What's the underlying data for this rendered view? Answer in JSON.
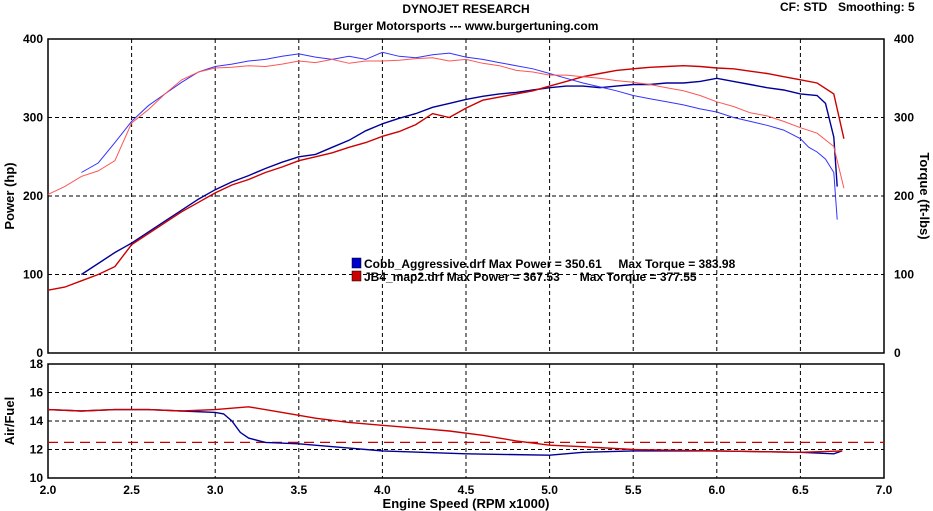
{
  "header": {
    "title": "DYNOJET RESEARCH",
    "subtitle": "Burger Motorsports --- www.burgertuning.com",
    "cf": "CF: STD",
    "smoothing": "Smoothing: 5"
  },
  "chart_data": [
    {
      "type": "line",
      "ylabel": "Power (hp)",
      "y2label": "Torque (ft-lbs)",
      "xlim": [
        2.0,
        7.0
      ],
      "ylim": [
        0,
        400
      ],
      "y2lim": [
        0,
        400
      ],
      "xticks": [
        "2.0",
        "2.5",
        "3.0",
        "3.5",
        "4.0",
        "4.5",
        "5.0",
        "5.5",
        "6.0",
        "6.5",
        "7.0"
      ],
      "yticks": [
        "0",
        "100",
        "200",
        "300",
        "400"
      ],
      "y2ticks": [
        "0",
        "100",
        "200",
        "300",
        "400"
      ],
      "grid": true,
      "legend": [
        {
          "text": "Cobb_Aggressive.drf Max Power = 350.61     Max Torque = 383.98",
          "color": "#0000cc"
        },
        {
          "text": "JB4_map2.drf Max Power = 367.53      Max Torque = 377.55",
          "color": "#cc0000"
        }
      ],
      "series": [
        {
          "name": "Cobb_Aggressive.drf",
          "quantity": "Power",
          "color": "#000099",
          "x": [
            2.2,
            2.3,
            2.4,
            2.5,
            2.6,
            2.7,
            2.8,
            2.9,
            3.0,
            3.1,
            3.2,
            3.3,
            3.4,
            3.5,
            3.6,
            3.7,
            3.8,
            3.9,
            4.0,
            4.1,
            4.2,
            4.3,
            4.4,
            4.5,
            4.6,
            4.7,
            4.8,
            4.9,
            5.0,
            5.1,
            5.2,
            5.3,
            5.4,
            5.5,
            5.6,
            5.7,
            5.8,
            5.9,
            6.0,
            6.1,
            6.2,
            6.3,
            6.4,
            6.5,
            6.6,
            6.65,
            6.7,
            6.72
          ],
          "y": [
            100,
            114,
            128,
            140,
            154,
            168,
            182,
            196,
            208,
            218,
            226,
            235,
            243,
            250,
            253,
            262,
            271,
            283,
            292,
            299,
            305,
            313,
            318,
            323,
            327,
            330,
            332,
            335,
            338,
            340,
            340,
            338,
            340,
            342,
            342,
            344,
            344,
            346,
            350,
            346,
            342,
            338,
            335,
            330,
            328,
            318,
            275,
            212
          ]
        },
        {
          "name": "JB4_map2.drf",
          "quantity": "Power",
          "color": "#cc0000",
          "x": [
            2.0,
            2.1,
            2.2,
            2.3,
            2.4,
            2.5,
            2.6,
            2.7,
            2.8,
            2.9,
            3.0,
            3.1,
            3.2,
            3.3,
            3.4,
            3.5,
            3.6,
            3.7,
            3.8,
            3.9,
            4.0,
            4.1,
            4.2,
            4.3,
            4.4,
            4.5,
            4.6,
            4.7,
            4.8,
            4.9,
            5.0,
            5.1,
            5.2,
            5.3,
            5.4,
            5.5,
            5.6,
            5.7,
            5.8,
            5.9,
            6.0,
            6.1,
            6.2,
            6.3,
            6.4,
            6.5,
            6.6,
            6.7,
            6.76
          ],
          "y": [
            80,
            84,
            92,
            100,
            110,
            138,
            152,
            166,
            180,
            192,
            204,
            214,
            221,
            230,
            237,
            245,
            250,
            255,
            262,
            268,
            276,
            282,
            291,
            305,
            300,
            312,
            322,
            326,
            330,
            334,
            340,
            346,
            352,
            356,
            360,
            362,
            364,
            365,
            366,
            365,
            363,
            362,
            359,
            356,
            352,
            348,
            344,
            330,
            273
          ]
        },
        {
          "name": "Cobb_Aggressive.drf",
          "quantity": "Torque",
          "color": "#3333ff",
          "x": [
            2.2,
            2.3,
            2.4,
            2.5,
            2.6,
            2.7,
            2.8,
            2.9,
            3.0,
            3.1,
            3.2,
            3.3,
            3.4,
            3.5,
            3.6,
            3.7,
            3.8,
            3.9,
            4.0,
            4.1,
            4.2,
            4.3,
            4.4,
            4.5,
            4.6,
            4.7,
            4.8,
            4.9,
            5.0,
            5.1,
            5.2,
            5.3,
            5.4,
            5.5,
            5.6,
            5.7,
            5.8,
            5.9,
            6.0,
            6.1,
            6.2,
            6.3,
            6.4,
            6.5,
            6.55,
            6.6,
            6.65,
            6.7,
            6.72
          ],
          "y": [
            230,
            242,
            268,
            295,
            315,
            330,
            345,
            358,
            365,
            368,
            372,
            374,
            378,
            381,
            377,
            374,
            378,
            374,
            383,
            378,
            376,
            380,
            382,
            377,
            374,
            370,
            366,
            362,
            356,
            350,
            344,
            339,
            334,
            328,
            324,
            320,
            316,
            311,
            307,
            300,
            295,
            290,
            284,
            273,
            262,
            256,
            247,
            230,
            170
          ]
        },
        {
          "name": "JB4_map2.drf",
          "quantity": "Torque",
          "color": "#ff5555",
          "x": [
            2.0,
            2.1,
            2.2,
            2.3,
            2.4,
            2.5,
            2.6,
            2.7,
            2.8,
            2.9,
            3.0,
            3.1,
            3.2,
            3.3,
            3.4,
            3.5,
            3.6,
            3.7,
            3.8,
            3.9,
            4.0,
            4.1,
            4.2,
            4.3,
            4.4,
            4.5,
            4.6,
            4.7,
            4.8,
            4.9,
            5.0,
            5.1,
            5.2,
            5.3,
            5.4,
            5.5,
            5.6,
            5.7,
            5.8,
            5.9,
            6.0,
            6.1,
            6.2,
            6.3,
            6.4,
            6.5,
            6.6,
            6.7,
            6.76
          ],
          "y": [
            202,
            212,
            225,
            232,
            245,
            293,
            310,
            330,
            348,
            358,
            363,
            364,
            366,
            365,
            368,
            372,
            370,
            374,
            369,
            372,
            372,
            373,
            375,
            376,
            372,
            374,
            369,
            366,
            360,
            358,
            354,
            354,
            352,
            350,
            347,
            345,
            342,
            338,
            334,
            328,
            320,
            314,
            306,
            302,
            295,
            287,
            280,
            263,
            210
          ]
        }
      ]
    },
    {
      "type": "line",
      "ylabel": "Air/Fuel",
      "xlabel": "Engine Speed (RPM x1000)",
      "xlim": [
        2.0,
        7.0
      ],
      "ylim": [
        10,
        18
      ],
      "xticks": [
        "2.0",
        "2.5",
        "3.0",
        "3.5",
        "4.0",
        "4.5",
        "5.0",
        "5.5",
        "6.0",
        "6.5",
        "7.0"
      ],
      "yticks": [
        "10",
        "12",
        "14",
        "16",
        "18"
      ],
      "grid": true,
      "reference_line": {
        "y": 12.5,
        "color": "#cc0000",
        "style": "dashed"
      },
      "series": [
        {
          "name": "Cobb_Aggressive.drf",
          "quantity": "Air/Fuel",
          "color": "#000099",
          "x": [
            2.0,
            2.2,
            2.4,
            2.6,
            2.8,
            3.0,
            3.05,
            3.1,
            3.15,
            3.2,
            3.3,
            3.5,
            3.8,
            4.0,
            4.5,
            5.0,
            5.2,
            5.5,
            6.0,
            6.5,
            6.7,
            6.75
          ],
          "y": [
            14.8,
            14.7,
            14.8,
            14.8,
            14.7,
            14.6,
            14.5,
            14.0,
            13.2,
            12.8,
            12.5,
            12.4,
            12.1,
            11.9,
            11.7,
            11.6,
            11.8,
            11.9,
            11.9,
            11.8,
            11.7,
            11.9
          ]
        },
        {
          "name": "JB4_map2.drf",
          "quantity": "Air/Fuel",
          "color": "#cc0000",
          "x": [
            2.0,
            2.2,
            2.4,
            2.6,
            2.8,
            3.0,
            3.1,
            3.2,
            3.4,
            3.6,
            3.8,
            4.0,
            4.2,
            4.4,
            4.6,
            4.8,
            5.0,
            5.2,
            5.5,
            6.0,
            6.5,
            6.75
          ],
          "y": [
            14.8,
            14.7,
            14.8,
            14.8,
            14.7,
            14.8,
            14.9,
            15.0,
            14.6,
            14.2,
            13.9,
            13.7,
            13.5,
            13.3,
            13.0,
            12.6,
            12.3,
            12.2,
            12.0,
            11.9,
            11.8,
            11.9
          ]
        }
      ]
    }
  ]
}
